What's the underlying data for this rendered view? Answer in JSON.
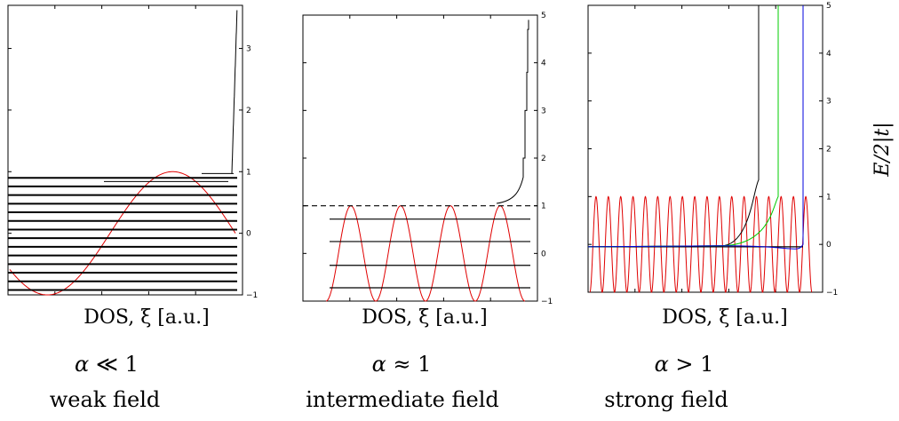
{
  "y_axis_label": "E/2|t|",
  "chart_data": [
    {
      "type": "line",
      "panel": "weak",
      "xlabel": "DOS, ξ [a.u.]",
      "ylim": [
        -1,
        3.7
      ],
      "yticks": [
        -1,
        0,
        1,
        2,
        3
      ],
      "regime": "α ≪ 1",
      "regime_symbol": "α",
      "regime_relation": "≪ 1",
      "description": "weak field",
      "landau_levels": [
        -0.92,
        -0.78,
        -0.64,
        -0.5,
        -0.36,
        -0.22,
        -0.08,
        0.06,
        0.2,
        0.34,
        0.48,
        0.62,
        0.76,
        0.9
      ],
      "wave_cycles": 0.9,
      "dos_threshold": 0.97,
      "dos_top": 3.65
    },
    {
      "type": "line",
      "panel": "intermediate",
      "xlabel": "DOS, ξ [a.u.]",
      "ylim": [
        -1,
        5
      ],
      "yticks": [
        -1,
        0,
        1,
        2,
        3,
        4,
        5
      ],
      "regime": "α ≈ 1",
      "regime_symbol": "α",
      "regime_relation": "≈ 1",
      "description": "intermediate field",
      "landau_levels": [
        -0.72,
        -0.25,
        0.25,
        0.72
      ],
      "dashed_level": 1.0,
      "wave_cycles": 4,
      "dos_threshold": 1.05,
      "dos_top": 4.9
    },
    {
      "type": "line",
      "panel": "strong",
      "xlabel": "DOS, ξ [a.u.]",
      "ylim": [
        -1,
        5
      ],
      "yticks": [
        -1,
        0,
        1,
        2,
        3,
        4,
        5
      ],
      "regime": "α > 1",
      "regime_symbol": "α",
      "regime_relation": "> 1",
      "description": "strong field",
      "landau_levels": [
        -0.05
      ],
      "wave_cycles": 18,
      "series": [
        {
          "color": "#000000",
          "threshold": 1.35
        },
        {
          "color": "#00cc00",
          "threshold": 1.0
        },
        {
          "color": "#0000dd",
          "threshold": 0.0
        }
      ]
    }
  ]
}
